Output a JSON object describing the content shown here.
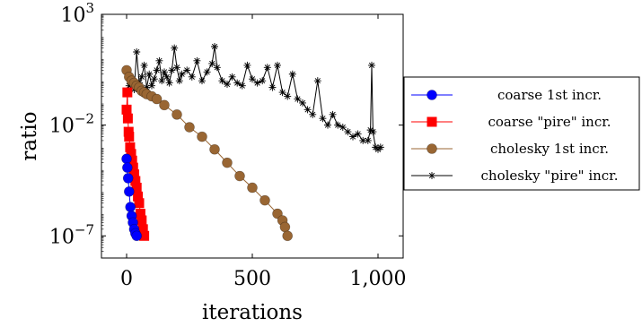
{
  "chart_data": {
    "type": "line",
    "xlabel": "iterations",
    "ylabel": "ratio",
    "yscale": "log",
    "xlim": [
      -100,
      1100
    ],
    "ylim": [
      1e-08,
      1000
    ],
    "x_ticks": [
      {
        "value": 0,
        "label": "0"
      },
      {
        "value": 500,
        "label": "500"
      },
      {
        "value": 1000,
        "label": "1,000"
      }
    ],
    "y_ticks": [
      {
        "value": 1000,
        "base": "10",
        "exp": "3"
      },
      {
        "value": 0.01,
        "base": "10",
        "exp": "−2"
      },
      {
        "value": 1e-07,
        "base": "10",
        "exp": "−7"
      }
    ],
    "legend_position": "outside-right",
    "series": [
      {
        "name": "coarse 1st incr.",
        "color": "#0000ff",
        "marker": "circle",
        "x": [
          0,
          3,
          6,
          10,
          15,
          20,
          25,
          30,
          35,
          40
        ],
        "y": [
          0.0003,
          0.00012,
          4e-05,
          1e-05,
          2e-06,
          8e-07,
          4e-07,
          2e-07,
          1.3e-07,
          1e-07
        ]
      },
      {
        "name": "coarse \"pire\" incr.",
        "color": "#ff0000",
        "marker": "square",
        "x": [
          0,
          3,
          5,
          8,
          10,
          14,
          18,
          22,
          26,
          30,
          35,
          40,
          45,
          50,
          55,
          60,
          65,
          70
        ],
        "y": [
          0.05,
          0.3,
          0.02,
          0.005,
          0.003,
          0.001,
          0.0005,
          0.00025,
          0.00012,
          6e-05,
          3e-05,
          1.5e-05,
          6e-06,
          3e-06,
          1e-06,
          5e-07,
          2e-07,
          1e-07
        ]
      },
      {
        "name": "cholesky 1st incr.",
        "color": "#996633",
        "marker": "circle",
        "x": [
          0,
          10,
          20,
          30,
          40,
          50,
          60,
          70,
          80,
          100,
          120,
          150,
          200,
          250,
          300,
          350,
          400,
          450,
          500,
          550,
          600,
          620,
          630,
          640
        ],
        "y": [
          3.0,
          1.5,
          1.0,
          0.8,
          0.6,
          0.5,
          0.35,
          0.3,
          0.25,
          0.2,
          0.15,
          0.08,
          0.03,
          0.008,
          0.003,
          0.0008,
          0.0002,
          5e-05,
          1.5e-05,
          4e-06,
          1e-06,
          5e-07,
          2.5e-07,
          1e-07
        ]
      },
      {
        "name": "cholesky \"pire\" incr.",
        "color": "#000000",
        "marker": "star",
        "x": [
          0,
          10,
          20,
          30,
          40,
          50,
          60,
          70,
          80,
          90,
          100,
          110,
          120,
          130,
          140,
          150,
          160,
          170,
          180,
          190,
          200,
          210,
          220,
          240,
          260,
          280,
          300,
          320,
          340,
          350,
          360,
          380,
          400,
          420,
          440,
          460,
          480,
          500,
          520,
          540,
          560,
          580,
          600,
          620,
          640,
          660,
          680,
          700,
          720,
          740,
          760,
          780,
          800,
          820,
          840,
          860,
          880,
          900,
          920,
          940,
          960,
          970,
          975,
          980,
          990,
          1000,
          1010
        ],
        "y": [
          0.3,
          0.6,
          1.0,
          0.4,
          20,
          0.8,
          1.5,
          5,
          0.5,
          2,
          0.6,
          1.2,
          3,
          8,
          1.0,
          2.5,
          1.5,
          0.8,
          3,
          30,
          4,
          1.0,
          2.0,
          3,
          1.5,
          8,
          1.0,
          2.5,
          6,
          35,
          4,
          1.0,
          0.7,
          1.5,
          0.8,
          0.6,
          5,
          1.2,
          0.8,
          1.0,
          4,
          0.5,
          5,
          0.3,
          0.2,
          2,
          0.15,
          0.1,
          0.05,
          0.03,
          1,
          0.02,
          0.01,
          0.03,
          0.01,
          0.008,
          0.005,
          0.003,
          0.004,
          0.002,
          0.002,
          0.006,
          5,
          0.005,
          0.001,
          0.0008,
          0.001
        ]
      }
    ]
  }
}
